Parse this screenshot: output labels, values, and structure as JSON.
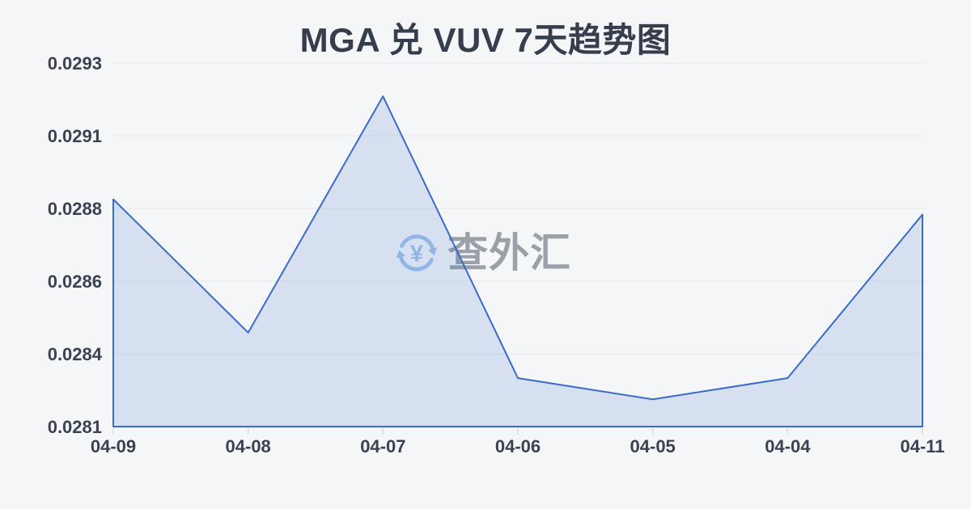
{
  "header": {
    "title": "MGA 兑 VUV 7天趋势图"
  },
  "watermark": {
    "icon": "currency-exchange-refresh-icon",
    "currency_symbol": "¥",
    "text": "查外汇"
  },
  "colors": {
    "background": "#f5f6f8",
    "title_text": "#363e4d",
    "axis_text": "#3a4251",
    "line": "#3a6bc7",
    "area_fill": "rgba(62,111,200,0.16)",
    "grid": "#e6e8ec",
    "tick": "#d9dbdf",
    "watermark_blue": "#a3c3ee",
    "watermark_gray": "#9aa0a8"
  },
  "chart_data": {
    "type": "area",
    "title": "MGA 兑 VUV 7天趋势图",
    "categories": [
      "04-09",
      "04-08",
      "04-07",
      "04-06",
      "04-05",
      "04-04",
      "04-11"
    ],
    "values": [
      0.02885,
      0.02841,
      0.02919,
      0.02826,
      0.02819,
      0.02826,
      0.0288
    ],
    "y_tick_labels": [
      "0.0293",
      "0.0291",
      "0.0288",
      "0.0286",
      "0.0284",
      "0.0281"
    ],
    "ylim": [
      0.0281,
      0.0293
    ],
    "xlabel": "",
    "ylabel": "",
    "grid": true,
    "legend_position": "none"
  }
}
